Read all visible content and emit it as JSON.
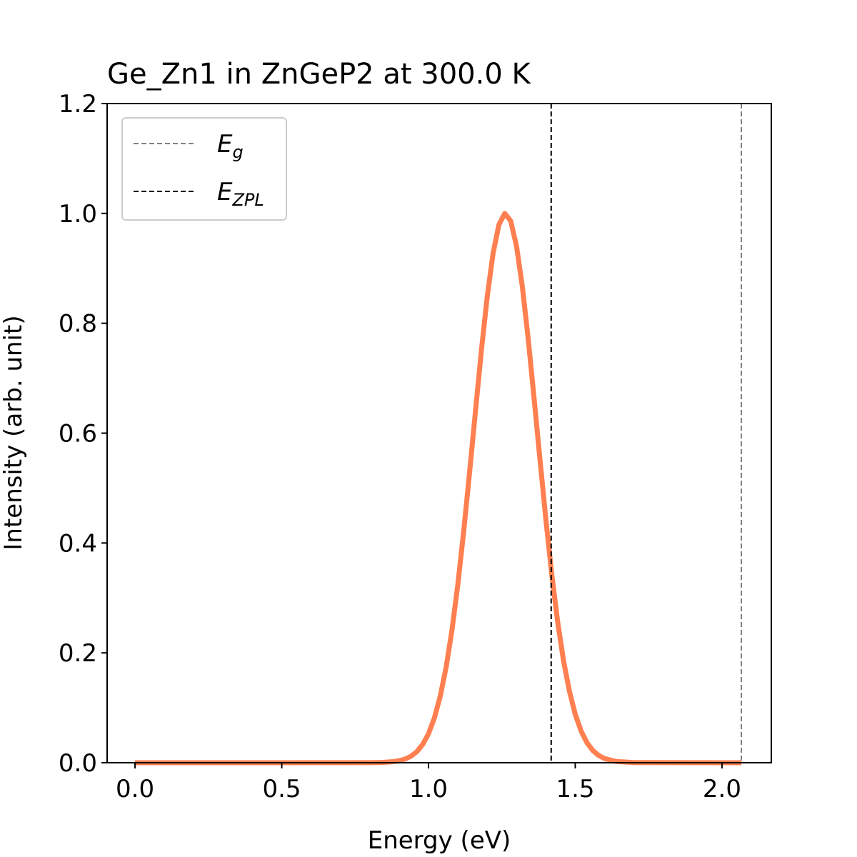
{
  "chart_data": {
    "type": "line",
    "title": "Ge_Zn1 in ZnGeP2 at 300.0 K",
    "xlabel": "Energy (eV)",
    "ylabel": "Intensity (arb. unit)",
    "xlim": [
      -0.095,
      2.168
    ],
    "ylim": [
      0,
      1.2
    ],
    "xticks": [
      "0.0",
      "0.5",
      "1.0",
      "1.5",
      "2.0"
    ],
    "yticks": [
      "0.0",
      "0.2",
      "0.4",
      "0.6",
      "0.8",
      "1.0",
      "1.2"
    ],
    "grid": false,
    "legend_position": "top-left",
    "series": [
      {
        "color": "#ff7f50",
        "x": [
          0.0,
          0.8,
          0.84,
          0.88,
          0.9,
          0.92,
          0.94,
          0.96,
          0.98,
          1.0,
          1.02,
          1.04,
          1.06,
          1.08,
          1.1,
          1.12,
          1.14,
          1.16,
          1.18,
          1.2,
          1.22,
          1.24,
          1.26,
          1.28,
          1.3,
          1.32,
          1.34,
          1.36,
          1.38,
          1.4,
          1.42,
          1.44,
          1.46,
          1.48,
          1.5,
          1.52,
          1.54,
          1.56,
          1.58,
          1.6,
          1.64,
          1.7,
          2.066
        ],
        "y": [
          0.0,
          0.0001,
          0.0005,
          0.0019,
          0.0036,
          0.0066,
          0.0117,
          0.02,
          0.0331,
          0.0527,
          0.0812,
          0.1209,
          0.174,
          0.2417,
          0.3247,
          0.4214,
          0.5283,
          0.6402,
          0.7497,
          0.848,
          0.9272,
          0.9795,
          1.0,
          0.9862,
          0.94,
          0.8657,
          0.7704,
          0.6625,
          0.5505,
          0.442,
          0.343,
          0.2571,
          0.1862,
          0.1304,
          0.0882,
          0.0576,
          0.0364,
          0.0222,
          0.0131,
          0.0075,
          0.0022,
          0.0003,
          0.0
        ]
      }
    ],
    "vlines": [
      {
        "label": "E_g",
        "label_main": "E",
        "label_sub": "g",
        "x": 2.066,
        "color": "#808080",
        "style": "dashed"
      },
      {
        "label": "E_ZPL",
        "label_main": "E",
        "label_sub": "ZPL",
        "x": 1.418,
        "color": "#000000",
        "style": "dashed"
      }
    ]
  }
}
